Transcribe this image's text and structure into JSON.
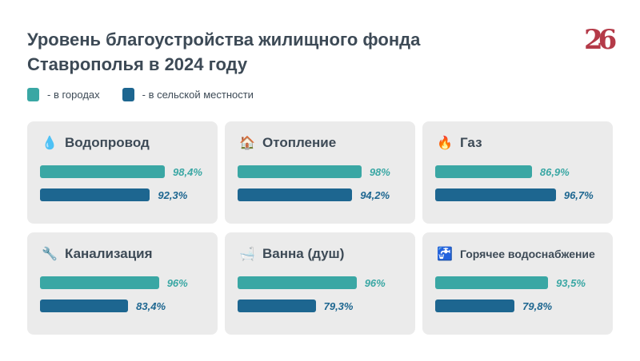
{
  "chart_data": {
    "type": "bar",
    "title": "Уровень благоустройства жилищного фонда Ставрополья в 2024 году",
    "logo": "26",
    "legend": [
      {
        "label": "- в городах",
        "color": "#3aa7a4"
      },
      {
        "label": "- в сельской местности",
        "color": "#1d6690"
      }
    ],
    "categories": [
      {
        "name": "Водопровод",
        "icon": "💧",
        "icon_name": "water-drop-icon",
        "city": 98.4,
        "rural": 92.3,
        "city_label": "98,4%",
        "rural_label": "92,3%"
      },
      {
        "name": "Отопление",
        "icon": "🏠",
        "icon_name": "house-icon",
        "city": 98,
        "rural": 94.2,
        "city_label": "98%",
        "rural_label": "94,2%"
      },
      {
        "name": "Газ",
        "icon": "🔥",
        "icon_name": "fire-icon",
        "city": 86.9,
        "rural": 96.7,
        "city_label": "86,9%",
        "rural_label": "96,7%"
      },
      {
        "name": "Канализация",
        "icon": "🔧",
        "icon_name": "wrench-icon",
        "city": 96,
        "rural": 83.4,
        "city_label": "96%",
        "rural_label": "83,4%"
      },
      {
        "name": "Ванна (душ)",
        "icon": "🛁",
        "icon_name": "bathtub-icon",
        "city": 96,
        "rural": 79.3,
        "city_label": "96%",
        "rural_label": "79,3%"
      },
      {
        "name": "Горячее водоснабжение",
        "icon": "🚰",
        "icon_name": "faucet-icon",
        "city": 93.5,
        "rural": 79.8,
        "city_label": "93,5%",
        "rural_label": "79,8%"
      }
    ]
  }
}
